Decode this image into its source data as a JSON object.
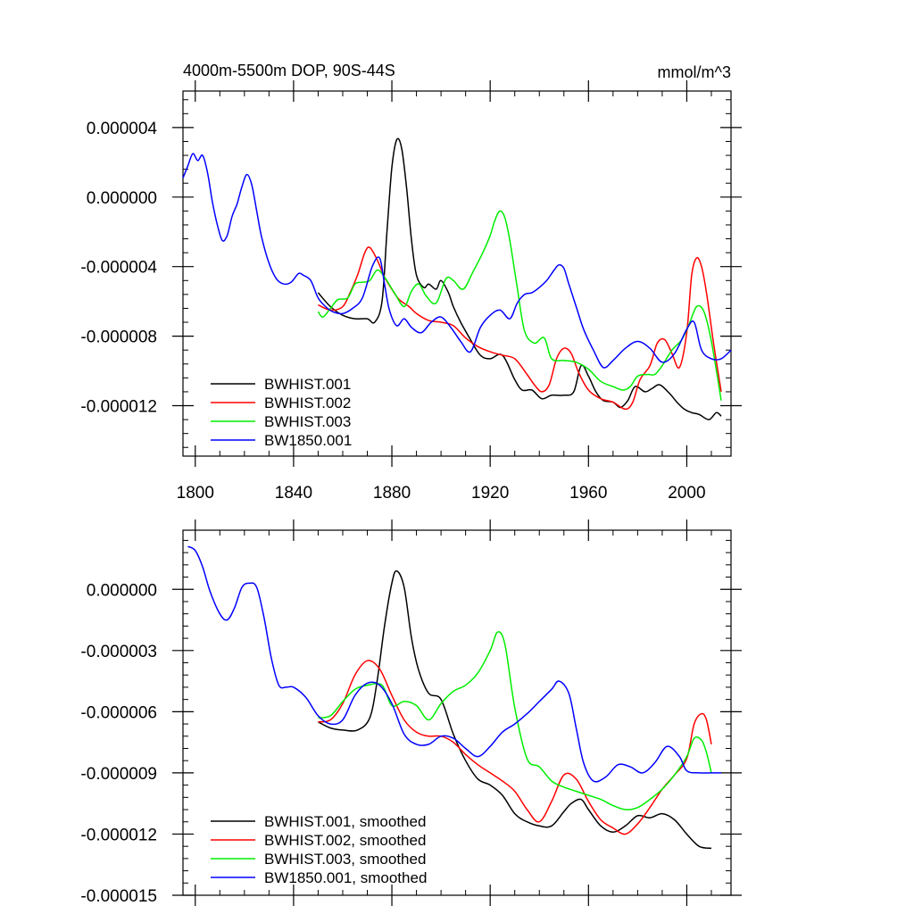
{
  "chart_data": [
    {
      "type": "line",
      "title": "4000m-5500m DOP, 90S-44S",
      "units": "mmol/m^3",
      "xlabel": "",
      "ylabel": "",
      "xlim": [
        1795,
        2018
      ],
      "ylim": [
        -1.49e-05,
        6.1e-06
      ],
      "xticks": [
        1800,
        1840,
        1880,
        1920,
        1960,
        2000
      ],
      "xtick_labels": [
        "1800",
        "1840",
        "1880",
        "1920",
        "1960",
        "2000"
      ],
      "yticks": [
        4e-06,
        0.0,
        -4e-06,
        -8e-06,
        -1.2e-05
      ],
      "ytick_labels": [
        "0.000004",
        "0.000000",
        "-0.000004",
        "-0.000008",
        "-0.000012"
      ],
      "legend_position": "bottom-left",
      "series": [
        {
          "name": "BWHIST.001",
          "color": "#000000",
          "x": [
            1850,
            1855,
            1860,
            1865,
            1870,
            1873,
            1876,
            1878,
            1880,
            1882,
            1884,
            1886,
            1888,
            1890,
            1893,
            1895,
            1898,
            1900,
            1903,
            1905,
            1908,
            1912,
            1916,
            1920,
            1925,
            1930,
            1933,
            1937,
            1941,
            1945,
            1950,
            1954,
            1957,
            1960,
            1963,
            1966,
            1970,
            1973,
            1976,
            1979,
            1983,
            1986,
            1989,
            1993,
            1996,
            1999,
            2002,
            2005,
            2009,
            2012,
            2014
          ],
          "y": [
            -5.5e-06,
            -6.3e-06,
            -6.8e-06,
            -7e-06,
            -7e-06,
            -7.2e-06,
            -6e-06,
            -2e-06,
            1.7e-06,
            3.3e-06,
            2.8e-06,
            5e-07,
            -2.5e-06,
            -4.5e-06,
            -5.2e-06,
            -5e-06,
            -5.3e-06,
            -4.8e-06,
            -5.5e-06,
            -6.3e-06,
            -7.2e-06,
            -8.2e-06,
            -9.1e-06,
            -9.3e-06,
            -9.1e-06,
            -1.05e-05,
            -1.11e-05,
            -1.11e-05,
            -1.16e-05,
            -1.14e-05,
            -1.14e-05,
            -1.12e-05,
            -9.7e-06,
            -1.03e-05,
            -1.12e-05,
            -1.17e-05,
            -1.18e-05,
            -1.21e-05,
            -1.17e-05,
            -1.09e-05,
            -1.12e-05,
            -1.1e-05,
            -1.08e-05,
            -1.13e-05,
            -1.18e-05,
            -1.22e-05,
            -1.24e-05,
            -1.25e-05,
            -1.28e-05,
            -1.24e-05,
            -1.26e-05
          ]
        },
        {
          "name": "BWHIST.002",
          "color": "#ff0000",
          "x": [
            1850,
            1855,
            1860,
            1863,
            1866,
            1869,
            1871,
            1874,
            1877,
            1880,
            1883,
            1887,
            1890,
            1895,
            1900,
            1905,
            1910,
            1915,
            1920,
            1925,
            1930,
            1935,
            1938,
            1941,
            1944,
            1947,
            1950,
            1953,
            1956,
            1960,
            1965,
            1970,
            1975,
            1978,
            1981,
            1985,
            1988,
            1991,
            1994,
            1997,
            2000,
            2002,
            2004,
            2006,
            2008,
            2011,
            2014
          ],
          "y": [
            -6.2e-06,
            -6.5e-06,
            -6.3e-06,
            -5.5e-06,
            -4.5e-06,
            -3.2e-06,
            -2.9e-06,
            -3.6e-06,
            -4.6e-06,
            -5.3e-06,
            -5.9e-06,
            -6.3e-06,
            -6.7e-06,
            -7.1e-06,
            -7.2e-06,
            -7.4e-06,
            -8.1e-06,
            -8.6e-06,
            -8.9e-06,
            -9.1e-06,
            -9.3e-06,
            -1.02e-05,
            -1.08e-05,
            -1.12e-05,
            -1.08e-05,
            -9.3e-06,
            -8.7e-06,
            -9e-06,
            -1.01e-05,
            -1.11e-05,
            -1.16e-05,
            -1.18e-05,
            -1.22e-05,
            -1.18e-05,
            -1.05e-05,
            -9.7e-06,
            -8.4e-06,
            -8.2e-06,
            -9e-06,
            -9.8e-06,
            -7.8e-06,
            -4.5e-06,
            -3.5e-06,
            -4e-06,
            -5.5e-06,
            -8.5e-06,
            -1.12e-05
          ]
        },
        {
          "name": "BWHIST.003",
          "color": "#00ee00",
          "x": [
            1850,
            1852,
            1855,
            1858,
            1862,
            1865,
            1868,
            1871,
            1874,
            1877,
            1881,
            1885,
            1888,
            1891,
            1894,
            1898,
            1902,
            1905,
            1909,
            1913,
            1917,
            1920,
            1922,
            1924,
            1926,
            1928,
            1931,
            1934,
            1938,
            1942,
            1945,
            1950,
            1955,
            1960,
            1965,
            1970,
            1974,
            1977,
            1980,
            1984,
            1987,
            1990,
            1994,
            1998,
            2001,
            2004,
            2007,
            2010,
            2014
          ],
          "y": [
            -6.6e-06,
            -6.9e-06,
            -6.4e-06,
            -5.9e-06,
            -5.8e-06,
            -5e-06,
            -4.9e-06,
            -4.8e-06,
            -4.2e-06,
            -4.6e-06,
            -5.5e-06,
            -6.3e-06,
            -5.4e-06,
            -5e-06,
            -5.7e-06,
            -6.1e-06,
            -4.7e-06,
            -4.8e-06,
            -5.3e-06,
            -4.3e-06,
            -3.2e-06,
            -2.2e-06,
            -1.3e-06,
            -8e-07,
            -1.2e-06,
            -2.5e-06,
            -5.2e-06,
            -7.7e-06,
            -8.4e-06,
            -8.1e-06,
            -9.3e-06,
            -9.4e-06,
            -9.5e-06,
            -9.9e-06,
            -1.06e-05,
            -1.09e-05,
            -1.11e-05,
            -1.09e-05,
            -1.03e-05,
            -1.02e-05,
            -1.02e-05,
            -9.7e-06,
            -8.8e-06,
            -8.2e-06,
            -7.3e-06,
            -6.3e-06,
            -6.6e-06,
            -8.3e-06,
            -1.17e-05
          ]
        },
        {
          "name": "BW1850.001",
          "color": "#0000ff",
          "x": [
            1795,
            1797,
            1799,
            1801,
            1803,
            1805,
            1807,
            1809,
            1811,
            1813,
            1815,
            1817,
            1819,
            1821,
            1823,
            1825,
            1827,
            1830,
            1833,
            1836,
            1839,
            1842,
            1844,
            1847,
            1850,
            1853,
            1856,
            1860,
            1864,
            1868,
            1872,
            1875,
            1877,
            1879,
            1882,
            1885,
            1888,
            1892,
            1896,
            1900,
            1904,
            1908,
            1912,
            1916,
            1920,
            1924,
            1928,
            1931,
            1934,
            1937,
            1940,
            1943,
            1946,
            1948,
            1950,
            1952,
            1955,
            1958,
            1962,
            1966,
            1970,
            1975,
            1980,
            1985,
            1990,
            1995,
            2000,
            2003,
            2006,
            2010,
            2014,
            2018
          ],
          "y": [
            1.1e-06,
            1.8e-06,
            2.5e-06,
            2.1e-06,
            2.4e-06,
            1.4e-06,
            -3e-07,
            -1.6e-06,
            -2.5e-06,
            -2.2e-06,
            -1.1e-06,
            -4e-07,
            6e-07,
            1.3e-06,
            7e-07,
            -8e-07,
            -2.3e-06,
            -3.8e-06,
            -4.7e-06,
            -5e-06,
            -4.9e-06,
            -4.4e-06,
            -4.5e-06,
            -4.8e-06,
            -5.8e-06,
            -6.3e-06,
            -6.6e-06,
            -6.7e-06,
            -6.4e-06,
            -5.8e-06,
            -4e-06,
            -3.5e-06,
            -5e-06,
            -6.5e-06,
            -7.4e-06,
            -7e-06,
            -7.5e-06,
            -7.8e-06,
            -7.2e-06,
            -6.9e-06,
            -7.5e-06,
            -8.3e-06,
            -8.9e-06,
            -7.5e-06,
            -6.8e-06,
            -6.5e-06,
            -7e-06,
            -6.1e-06,
            -5.6e-06,
            -5.5e-06,
            -5.2e-06,
            -4.8e-06,
            -4.2e-06,
            -3.9e-06,
            -4.1e-06,
            -5e-06,
            -6.3e-06,
            -7.6e-06,
            -8.8e-06,
            -9.8e-06,
            -9.4e-06,
            -8.7e-06,
            -8.3e-06,
            -8.7e-06,
            -9.5e-06,
            -9e-06,
            -7.6e-06,
            -7.2e-06,
            -8.8e-06,
            -9.3e-06,
            -9.3e-06,
            -8.8e-06
          ]
        }
      ]
    },
    {
      "type": "line",
      "title": "",
      "xlabel": "",
      "ylabel": "",
      "xlim": [
        1795,
        2018
      ],
      "ylim": [
        -1.5e-05,
        2.9e-06
      ],
      "xticks": [
        1800,
        1840,
        1880,
        1920,
        1960,
        2000
      ],
      "xtick_labels": [
        "",
        "",
        "",
        "",
        "",
        ""
      ],
      "yticks": [
        0.0,
        -3e-06,
        -6e-06,
        -9e-06,
        -1.2e-05,
        -1.5e-05
      ],
      "ytick_labels": [
        "0.000000",
        "-0.000003",
        "-0.000006",
        "-0.000009",
        "-0.000012",
        "-0.000015"
      ],
      "legend_position": "bottom-left",
      "series": [
        {
          "name": "BWHIST.001, smoothed",
          "color": "#000000",
          "x": [
            1850,
            1855,
            1860,
            1866,
            1871,
            1874,
            1877,
            1880,
            1882,
            1885,
            1888,
            1891,
            1895,
            1900,
            1905,
            1910,
            1915,
            1920,
            1925,
            1930,
            1935,
            1940,
            1945,
            1950,
            1953,
            1957,
            1960,
            1965,
            1970,
            1975,
            1980,
            1985,
            1990,
            1995,
            2000,
            2005,
            2010
          ],
          "y": [
            -6.5e-06,
            -6.8e-06,
            -6.9e-06,
            -6.9e-06,
            -6.3e-06,
            -4.5e-06,
            -1.8e-06,
            3e-07,
            9e-07,
            1e-07,
            -2.4e-06,
            -4e-06,
            -5.1e-06,
            -5.4e-06,
            -7.1e-06,
            -8.4e-06,
            -9.3e-06,
            -9.6e-06,
            -1.01e-05,
            -1.1e-05,
            -1.14e-05,
            -1.16e-05,
            -1.16e-05,
            -1.09e-05,
            -1.05e-05,
            -1.03e-05,
            -1.08e-05,
            -1.16e-05,
            -1.19e-05,
            -1.16e-05,
            -1.11e-05,
            -1.12e-05,
            -1.1e-05,
            -1.13e-05,
            -1.2e-05,
            -1.26e-05,
            -1.27e-05
          ]
        },
        {
          "name": "BWHIST.002, smoothed",
          "color": "#ff0000",
          "x": [
            1850,
            1855,
            1860,
            1865,
            1870,
            1875,
            1880,
            1885,
            1890,
            1895,
            1900,
            1905,
            1910,
            1915,
            1920,
            1925,
            1930,
            1935,
            1940,
            1945,
            1950,
            1955,
            1960,
            1965,
            1970,
            1975,
            1980,
            1985,
            1990,
            1995,
            2000,
            2003,
            2006,
            2008,
            2010
          ],
          "y": [
            -6.5e-06,
            -6.4e-06,
            -5.6e-06,
            -4.2e-06,
            -3.5e-06,
            -3.9e-06,
            -5.2e-06,
            -6.4e-06,
            -7e-06,
            -7.2e-06,
            -7.2e-06,
            -7.5e-06,
            -8.1e-06,
            -8.6e-06,
            -9e-06,
            -9.4e-06,
            -9.9e-06,
            -1.08e-05,
            -1.14e-05,
            -1.04e-05,
            -9.1e-06,
            -9.3e-06,
            -1.04e-05,
            -1.13e-05,
            -1.17e-05,
            -1.2e-05,
            -1.15e-05,
            -1.07e-05,
            -9.8e-06,
            -9.1e-06,
            -8.3e-06,
            -6.6e-06,
            -6.1e-06,
            -6.4e-06,
            -7.6e-06
          ]
        },
        {
          "name": "BWHIST.003, smoothed",
          "color": "#00ee00",
          "x": [
            1850,
            1855,
            1860,
            1865,
            1870,
            1876,
            1880,
            1885,
            1890,
            1895,
            1900,
            1905,
            1910,
            1915,
            1920,
            1923,
            1926,
            1930,
            1935,
            1940,
            1945,
            1950,
            1955,
            1960,
            1965,
            1970,
            1975,
            1980,
            1985,
            1990,
            1995,
            2000,
            2003,
            2006,
            2008,
            2010
          ],
          "y": [
            -6.3e-06,
            -6.2e-06,
            -5.5e-06,
            -4.9e-06,
            -4.7e-06,
            -4.7e-06,
            -5.7e-06,
            -5.5e-06,
            -5.7e-06,
            -6.4e-06,
            -5.6e-06,
            -5e-06,
            -4.7e-06,
            -4.1e-06,
            -3e-06,
            -2.1e-06,
            -2.7e-06,
            -5.8e-06,
            -8.3e-06,
            -8.7e-06,
            -9.4e-06,
            -9.7e-06,
            -9.9e-06,
            -1.01e-05,
            -1.03e-05,
            -1.06e-05,
            -1.08e-05,
            -1.07e-05,
            -1.03e-05,
            -9.8e-06,
            -9.1e-06,
            -8.2e-06,
            -7.3e-06,
            -7.4e-06,
            -8e-06,
            -9e-06
          ]
        },
        {
          "name": "BW1850.001, smoothed",
          "color": "#0000ff",
          "x": [
            1797,
            1800,
            1803,
            1806,
            1810,
            1813,
            1816,
            1819,
            1822,
            1825,
            1828,
            1831,
            1834,
            1837,
            1840,
            1845,
            1850,
            1855,
            1860,
            1865,
            1870,
            1875,
            1880,
            1885,
            1890,
            1895,
            1900,
            1905,
            1910,
            1915,
            1920,
            1925,
            1930,
            1935,
            1940,
            1945,
            1948,
            1952,
            1955,
            1958,
            1962,
            1967,
            1972,
            1977,
            1982,
            1987,
            1992,
            1997,
            2000,
            2005,
            2010,
            2014
          ],
          "y": [
            2.1e-06,
            1.9e-06,
            1.1e-06,
            -1e-07,
            -1.2e-06,
            -1.5e-06,
            -9e-07,
            1e-07,
            3e-07,
            1e-07,
            -1.4e-06,
            -3.4e-06,
            -4.7e-06,
            -4.8e-06,
            -4.8e-06,
            -5.3e-06,
            -6.2e-06,
            -6.6e-06,
            -6.4e-06,
            -5.2e-06,
            -4.6e-06,
            -4.7e-06,
            -5.6e-06,
            -7.1e-06,
            -7.6e-06,
            -7.6e-06,
            -7.2e-06,
            -7.3e-06,
            -7.8e-06,
            -8.2e-06,
            -7.7e-06,
            -7e-06,
            -6.6e-06,
            -6.1e-06,
            -5.5e-06,
            -4.9e-06,
            -4.5e-06,
            -5.1e-06,
            -6.8e-06,
            -8.5e-06,
            -9.4e-06,
            -9.2e-06,
            -8.6e-06,
            -8.7e-06,
            -9e-06,
            -8.5e-06,
            -7.7e-06,
            -8.2e-06,
            -8.9e-06,
            -9e-06,
            -9e-06,
            -9e-06
          ]
        }
      ]
    }
  ]
}
